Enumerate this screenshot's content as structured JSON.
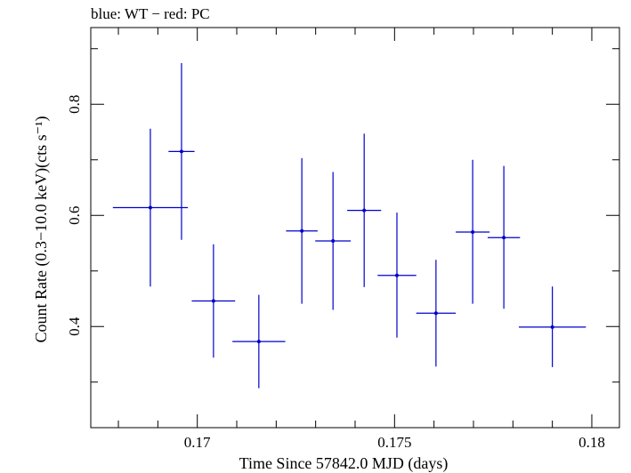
{
  "chart_data": {
    "type": "scatter",
    "title": "blue: WT − red: PC",
    "xlabel": "Time Since 57842.0 MJD (days)",
    "ylabel": "Count Rate (0.3−10.0 keV)(cts s⁻¹)",
    "xlim": [
      0.1673,
      0.1807
    ],
    "ylim": [
      0.218,
      0.938
    ],
    "x_ticks": [
      {
        "value": 0.17,
        "label": "0.17"
      },
      {
        "value": 0.175,
        "label": "0.175"
      },
      {
        "value": 0.18,
        "label": "0.18"
      }
    ],
    "x_minor_step": 0.001,
    "y_ticks": [
      {
        "value": 0.4,
        "label": "0.4"
      },
      {
        "value": 0.6,
        "label": "0.6"
      },
      {
        "value": 0.8,
        "label": "0.8"
      }
    ],
    "y_minor_step": 0.1,
    "grid": false,
    "colors": {
      "wt": "#0000cc",
      "axis": "#000000"
    },
    "series": [
      {
        "color": "#0000cc",
        "points": [
          {
            "x": 0.16881,
            "xlo": 0.16786,
            "xhi": 0.16976,
            "y": 0.614,
            "ylo": 0.472,
            "yhi": 0.756
          },
          {
            "x": 0.1696,
            "xlo": 0.16927,
            "xhi": 0.16993,
            "y": 0.715,
            "ylo": 0.556,
            "yhi": 0.874
          },
          {
            "x": 0.17041,
            "xlo": 0.16986,
            "xhi": 0.17096,
            "y": 0.446,
            "ylo": 0.344,
            "yhi": 0.548
          },
          {
            "x": 0.17156,
            "xlo": 0.17089,
            "xhi": 0.17223,
            "y": 0.373,
            "ylo": 0.289,
            "yhi": 0.457
          },
          {
            "x": 0.17265,
            "xlo": 0.17225,
            "xhi": 0.17305,
            "y": 0.572,
            "ylo": 0.441,
            "yhi": 0.703
          },
          {
            "x": 0.17344,
            "xlo": 0.17299,
            "xhi": 0.17389,
            "y": 0.554,
            "ylo": 0.43,
            "yhi": 0.678
          },
          {
            "x": 0.17423,
            "xlo": 0.1738,
            "xhi": 0.17466,
            "y": 0.609,
            "ylo": 0.471,
            "yhi": 0.747
          },
          {
            "x": 0.17506,
            "xlo": 0.17457,
            "xhi": 0.17555,
            "y": 0.492,
            "ylo": 0.38,
            "yhi": 0.605
          },
          {
            "x": 0.17605,
            "xlo": 0.17555,
            "xhi": 0.17655,
            "y": 0.424,
            "ylo": 0.328,
            "yhi": 0.52
          },
          {
            "x": 0.17698,
            "xlo": 0.17655,
            "xhi": 0.17741,
            "y": 0.57,
            "ylo": 0.441,
            "yhi": 0.7
          },
          {
            "x": 0.17777,
            "xlo": 0.17736,
            "xhi": 0.17818,
            "y": 0.56,
            "ylo": 0.432,
            "yhi": 0.689
          },
          {
            "x": 0.179,
            "xlo": 0.17815,
            "xhi": 0.17985,
            "y": 0.399,
            "ylo": 0.327,
            "yhi": 0.472
          }
        ]
      }
    ]
  }
}
